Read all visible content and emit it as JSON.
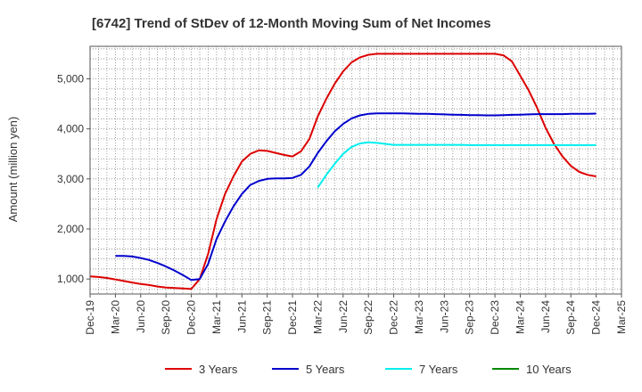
{
  "chart_data": {
    "type": "line",
    "title": "[6742]  Trend of StDev of 12-Month Moving Sum of Net Incomes",
    "ylabel": "Amount (million yen)",
    "xlabel": "",
    "ylim": [
      700,
      5650
    ],
    "yticks": [
      1000,
      2000,
      3000,
      4000,
      5000
    ],
    "ytick_labels": [
      "1,000",
      "2,000",
      "3,000",
      "4,000",
      "5,000"
    ],
    "x_start": "Dec-19",
    "x_end": "Mar-25",
    "x_tick_labels": [
      "Dec-19",
      "Mar-20",
      "Jun-20",
      "Sep-20",
      "Dec-20",
      "Mar-21",
      "Jun-21",
      "Sep-21",
      "Dec-21",
      "Mar-22",
      "Jun-22",
      "Sep-22",
      "Dec-22",
      "Mar-23",
      "Jun-23",
      "Sep-23",
      "Dec-23",
      "Mar-24",
      "Jun-24",
      "Sep-24",
      "Dec-24",
      "Mar-25"
    ],
    "x_months": [
      "Dec-19",
      "Jan-20",
      "Feb-20",
      "Mar-20",
      "Apr-20",
      "May-20",
      "Jun-20",
      "Jul-20",
      "Aug-20",
      "Sep-20",
      "Oct-20",
      "Nov-20",
      "Dec-20",
      "Jan-21",
      "Feb-21",
      "Mar-21",
      "Apr-21",
      "May-21",
      "Jun-21",
      "Jul-21",
      "Aug-21",
      "Sep-21",
      "Oct-21",
      "Nov-21",
      "Dec-21",
      "Jan-22",
      "Feb-22",
      "Mar-22",
      "Apr-22",
      "May-22",
      "Jun-22",
      "Jul-22",
      "Aug-22",
      "Sep-22",
      "Oct-22",
      "Nov-22",
      "Dec-22",
      "Jan-23",
      "Feb-23",
      "Mar-23",
      "Apr-23",
      "May-23",
      "Jun-23",
      "Jul-23",
      "Aug-23",
      "Sep-23",
      "Oct-23",
      "Nov-23",
      "Dec-23",
      "Jan-24",
      "Feb-24",
      "Mar-24",
      "Apr-24",
      "May-24",
      "Jun-24",
      "Jul-24",
      "Aug-24",
      "Sep-24",
      "Oct-24",
      "Nov-24",
      "Dec-24"
    ],
    "grid": true,
    "legend_position": "bottom",
    "series": [
      {
        "name": "3 Years",
        "color": "#dd0000",
        "values": [
          1050,
          1040,
          1020,
          990,
          960,
          930,
          900,
          880,
          850,
          830,
          820,
          810,
          800,
          1000,
          1500,
          2200,
          2700,
          3050,
          3350,
          3500,
          3570,
          3560,
          3520,
          3480,
          3450,
          3550,
          3800,
          4250,
          4600,
          4900,
          5150,
          5330,
          5430,
          5480,
          5500,
          5500,
          5500,
          5500,
          5500,
          5500,
          5500,
          5500,
          5500,
          5500,
          5500,
          5500,
          5500,
          5500,
          5500,
          5470,
          5350,
          5060,
          4770,
          4420,
          4020,
          3700,
          3450,
          3260,
          3140,
          3080,
          3050
        ]
      },
      {
        "name": "5 Years",
        "color": "#0000cc",
        "values": [
          null,
          null,
          null,
          1460,
          1460,
          1450,
          1420,
          1380,
          1320,
          1250,
          1170,
          1080,
          980,
          1000,
          1300,
          1800,
          2150,
          2450,
          2700,
          2880,
          2960,
          3000,
          3010,
          3010,
          3020,
          3080,
          3250,
          3520,
          3750,
          3950,
          4100,
          4210,
          4270,
          4300,
          4310,
          4310,
          4310,
          4310,
          4305,
          4300,
          4300,
          4295,
          4290,
          4285,
          4280,
          4275,
          4275,
          4270,
          4270,
          4275,
          4280,
          4285,
          4290,
          4295,
          4295,
          4295,
          4295,
          4300,
          4300,
          4300,
          4305
        ]
      },
      {
        "name": "7 Years",
        "color": "#00eeee",
        "values": [
          null,
          null,
          null,
          null,
          null,
          null,
          null,
          null,
          null,
          null,
          null,
          null,
          null,
          null,
          null,
          null,
          null,
          null,
          null,
          null,
          null,
          null,
          null,
          null,
          null,
          null,
          null,
          2830,
          3080,
          3300,
          3500,
          3640,
          3710,
          3730,
          3720,
          3700,
          3680,
          3680,
          3680,
          3680,
          3680,
          3680,
          3680,
          3680,
          3680,
          3675,
          3675,
          3675,
          3675,
          3675,
          3675,
          3675,
          3675,
          3675,
          3675,
          3675,
          3675,
          3675,
          3675,
          3675,
          3675
        ]
      },
      {
        "name": "10 Years",
        "color": "#008800",
        "values": []
      }
    ]
  }
}
